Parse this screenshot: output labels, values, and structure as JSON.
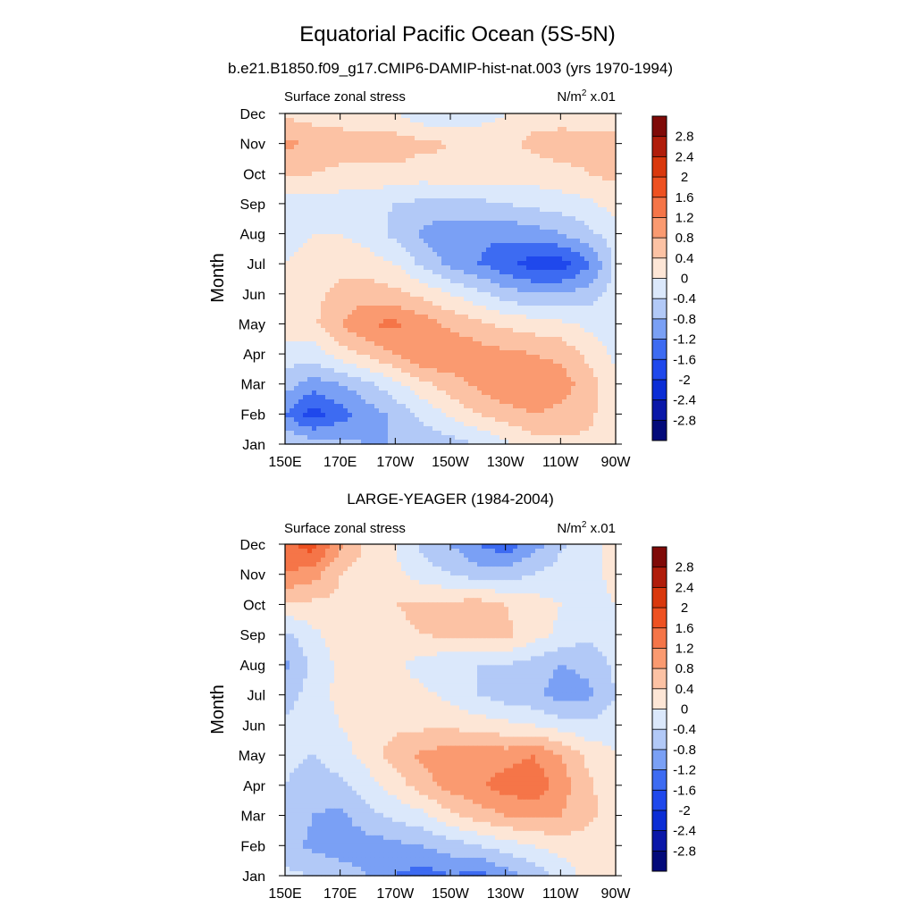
{
  "figure": {
    "title": "Equatorial Pacific Ocean (5S-5N)"
  },
  "chart_data": [
    {
      "type": "heatmap",
      "title": "b.e21.B1850.f09_g17.CMIP6-DAMIP-hist-nat.003 (yrs 1970-1994)",
      "left_label": "Surface zonal stress",
      "units_label": "N/m",
      "units_sup": "2",
      "units_scale": " x.01",
      "xlabel": "",
      "ylabel": "Month",
      "x_ticks": [
        "150E",
        "170E",
        "170W",
        "150W",
        "130W",
        "110W",
        "90W"
      ],
      "y_ticks": [
        "Jan",
        "Feb",
        "Mar",
        "Apr",
        "May",
        "Jun",
        "Jul",
        "Aug",
        "Sep",
        "Oct",
        "Nov",
        "Dec"
      ],
      "x_range_lon": [
        150,
        270
      ],
      "colorbar_labels": [
        "2.8",
        "2.4",
        "2",
        "1.6",
        "1.2",
        "0.8",
        "0.4",
        "0",
        "-0.4",
        "-0.8",
        "-1.2",
        "-1.6",
        "-2",
        "-2.4",
        "-2.8"
      ],
      "x": [
        150,
        160,
        170,
        180,
        190,
        200,
        210,
        220,
        230,
        240,
        250,
        260,
        270
      ],
      "rows": [
        {
          "month": "Jan",
          "values": [
            -0.4,
            -0.6,
            -0.7,
            -0.8,
            -0.8,
            -0.7,
            -0.6,
            -0.4,
            -0.1,
            0.2,
            0.3,
            0.3,
            0.2
          ]
        },
        {
          "month": "Feb",
          "values": [
            -1.2,
            -1.8,
            -1.4,
            -1.0,
            -0.7,
            -0.3,
            0.1,
            0.4,
            0.6,
            0.8,
            0.7,
            0.5,
            0.1
          ]
        },
        {
          "month": "Mar",
          "values": [
            -0.6,
            -1.0,
            -0.8,
            -0.5,
            -0.1,
            0.3,
            0.6,
            0.9,
            1.2,
            1.1,
            1.0,
            0.6,
            0.1
          ]
        },
        {
          "month": "Apr",
          "values": [
            -0.2,
            -0.2,
            0.2,
            0.5,
            0.8,
            1.2,
            1.2,
            1.0,
            0.9,
            0.8,
            0.7,
            0.3,
            -0.1
          ]
        },
        {
          "month": "May",
          "values": [
            0.2,
            0.3,
            0.8,
            1.2,
            1.3,
            1.0,
            0.7,
            0.5,
            0.3,
            0.2,
            0.1,
            -0.1,
            -0.2
          ]
        },
        {
          "month": "Jun",
          "values": [
            0.2,
            0.3,
            0.5,
            0.6,
            0.5,
            0.3,
            0.0,
            -0.3,
            -0.6,
            -0.8,
            -0.8,
            -0.6,
            -0.2
          ]
        },
        {
          "month": "Jul",
          "values": [
            0.0,
            0.2,
            0.3,
            0.2,
            0.0,
            -0.5,
            -0.9,
            -1.2,
            -1.5,
            -1.8,
            -1.8,
            -1.3,
            -0.3
          ]
        },
        {
          "month": "Aug",
          "values": [
            -0.2,
            0.0,
            0.0,
            -0.2,
            -0.5,
            -0.9,
            -1.1,
            -1.1,
            -1.1,
            -1.0,
            -0.8,
            -0.5,
            -0.2
          ]
        },
        {
          "month": "Sep",
          "values": [
            -0.2,
            -0.2,
            -0.2,
            -0.3,
            -0.4,
            -0.5,
            -0.5,
            -0.5,
            -0.4,
            -0.3,
            -0.2,
            -0.1,
            0.2
          ]
        },
        {
          "month": "Oct",
          "values": [
            0.5,
            0.4,
            0.3,
            0.3,
            0.3,
            0.2,
            0.3,
            0.3,
            0.2,
            0.2,
            0.3,
            0.4,
            0.5
          ]
        },
        {
          "month": "Nov",
          "values": [
            0.9,
            0.7,
            0.6,
            0.6,
            0.6,
            0.5,
            0.4,
            0.3,
            0.3,
            0.5,
            0.6,
            0.5,
            0.5
          ]
        },
        {
          "month": "Dec",
          "values": [
            0.3,
            0.2,
            0.2,
            0.1,
            0.0,
            -0.3,
            -0.4,
            -0.2,
            0.0,
            0.2,
            0.2,
            0.2,
            0.2
          ]
        }
      ]
    },
    {
      "type": "heatmap",
      "title": "LARGE-YEAGER (1984-2004)",
      "left_label": "Surface zonal stress",
      "units_label": "N/m",
      "units_sup": "2",
      "units_scale": " x.01",
      "xlabel": "",
      "ylabel": "Month",
      "x_ticks": [
        "150E",
        "170E",
        "170W",
        "150W",
        "130W",
        "110W",
        "90W"
      ],
      "y_ticks": [
        "Jan",
        "Feb",
        "Mar",
        "Apr",
        "May",
        "Jun",
        "Jul",
        "Aug",
        "Sep",
        "Oct",
        "Nov",
        "Dec"
      ],
      "x_range_lon": [
        150,
        270
      ],
      "colorbar_labels": [
        "2.8",
        "2.4",
        "2",
        "1.6",
        "1.2",
        "0.8",
        "0.4",
        "0",
        "-0.4",
        "-0.8",
        "-1.2",
        "-1.6",
        "-2",
        "-2.4",
        "-2.8"
      ],
      "x": [
        150,
        160,
        170,
        180,
        190,
        200,
        210,
        220,
        230,
        240,
        250,
        260,
        270
      ],
      "rows": [
        {
          "month": "Jan",
          "values": [
            -0.3,
            -0.4,
            -0.5,
            -0.8,
            -1.2,
            -1.4,
            -1.2,
            -1.4,
            -1.0,
            -0.7,
            -0.3,
            0.2,
            0.3
          ]
        },
        {
          "month": "Feb",
          "values": [
            -0.6,
            -0.9,
            -1.1,
            -1.0,
            -0.9,
            -0.8,
            -0.6,
            -0.4,
            -0.2,
            0.0,
            0.2,
            0.2,
            0.2
          ]
        },
        {
          "month": "Mar",
          "values": [
            -0.5,
            -0.8,
            -0.9,
            -0.5,
            -0.3,
            -0.1,
            0.3,
            0.6,
            0.8,
            0.9,
            0.8,
            0.5,
            0.2
          ]
        },
        {
          "month": "Apr",
          "values": [
            -0.4,
            -0.6,
            -0.5,
            -0.2,
            0.2,
            0.6,
            1.0,
            1.1,
            1.4,
            1.5,
            1.0,
            0.5,
            0.1
          ]
        },
        {
          "month": "May",
          "values": [
            -0.3,
            -0.4,
            -0.2,
            0.2,
            0.6,
            0.9,
            1.0,
            1.1,
            1.0,
            1.2,
            0.8,
            0.3,
            0.0
          ]
        },
        {
          "month": "Jun",
          "values": [
            -0.3,
            -0.2,
            0.0,
            0.2,
            0.3,
            0.3,
            0.3,
            0.2,
            0.1,
            0.0,
            -0.2,
            -0.3,
            -0.2
          ]
        },
        {
          "month": "Jul",
          "values": [
            -0.6,
            -0.2,
            0.1,
            0.2,
            0.2,
            0.1,
            -0.1,
            -0.4,
            -0.6,
            -0.7,
            -1.0,
            -0.9,
            -0.4
          ]
        },
        {
          "month": "Aug",
          "values": [
            -0.9,
            -0.3,
            0.1,
            0.2,
            0.1,
            -0.2,
            -0.3,
            -0.4,
            -0.4,
            -0.6,
            -0.8,
            -0.7,
            -0.3
          ]
        },
        {
          "month": "Sep",
          "values": [
            -0.5,
            -0.1,
            0.2,
            0.2,
            0.3,
            0.4,
            0.5,
            0.6,
            0.5,
            0.2,
            -0.1,
            -0.3,
            -0.1
          ]
        },
        {
          "month": "Oct",
          "values": [
            0.3,
            0.3,
            0.3,
            0.2,
            0.4,
            0.5,
            0.5,
            0.6,
            0.4,
            0.2,
            0.0,
            -0.3,
            0.0
          ]
        },
        {
          "month": "Nov",
          "values": [
            1.2,
            1.0,
            0.4,
            0.2,
            0.1,
            -0.2,
            -0.4,
            -0.6,
            -0.6,
            -0.4,
            -0.2,
            -0.2,
            0.2
          ]
        },
        {
          "month": "Dec",
          "values": [
            1.5,
            1.8,
            0.9,
            0.3,
            0.0,
            -0.5,
            -0.8,
            -1.2,
            -1.5,
            -1.0,
            -0.5,
            -0.1,
            0.1
          ]
        }
      ]
    }
  ],
  "colorscale": [
    {
      "min": -99,
      "max": -2.8,
      "color": "#030a7a"
    },
    {
      "min": -2.8,
      "max": -2.4,
      "color": "#0a17a8"
    },
    {
      "min": -2.4,
      "max": -2.0,
      "color": "#0b2dd5"
    },
    {
      "min": -2.0,
      "max": -1.6,
      "color": "#1f48ec"
    },
    {
      "min": -1.6,
      "max": -1.2,
      "color": "#3d6bf2"
    },
    {
      "min": -1.2,
      "max": -0.8,
      "color": "#7aa0f5"
    },
    {
      "min": -0.8,
      "max": -0.4,
      "color": "#b2c9f7"
    },
    {
      "min": -0.4,
      "max": 0.0,
      "color": "#dbe8fb"
    },
    {
      "min": 0.0,
      "max": 0.4,
      "color": "#fde6d6"
    },
    {
      "min": 0.4,
      "max": 0.8,
      "color": "#fcc2a4"
    },
    {
      "min": 0.8,
      "max": 1.2,
      "color": "#fa9a70"
    },
    {
      "min": 1.2,
      "max": 1.6,
      "color": "#f57548"
    },
    {
      "min": 1.6,
      "max": 2.0,
      "color": "#ee5121"
    },
    {
      "min": 2.0,
      "max": 2.4,
      "color": "#d9380d"
    },
    {
      "min": 2.4,
      "max": 2.8,
      "color": "#b01d0b"
    },
    {
      "min": 2.8,
      "max": 99,
      "color": "#7f0a08"
    }
  ]
}
